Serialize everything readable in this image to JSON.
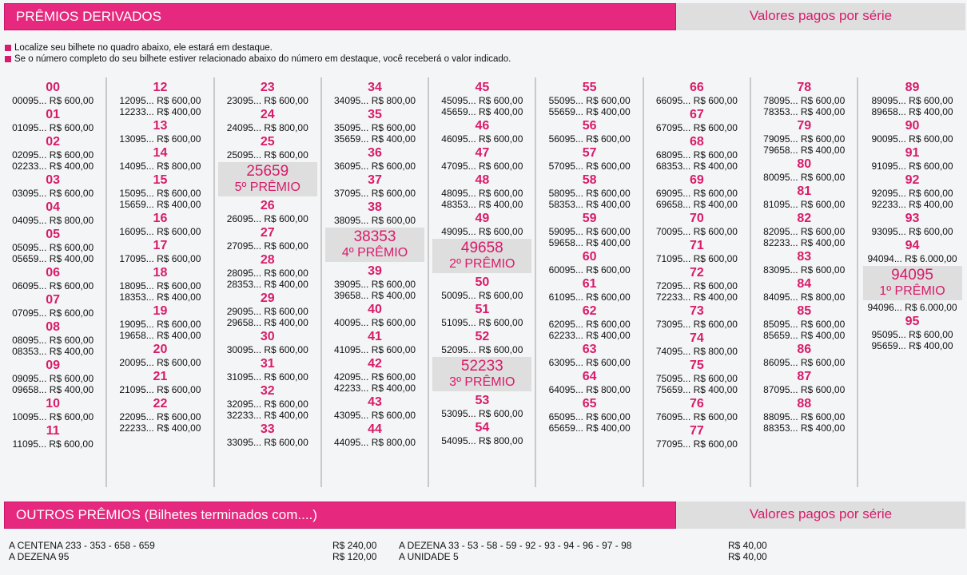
{
  "header": {
    "title": "PRÊMIOS DERIVADOS",
    "right_label": "Valores pagos por série"
  },
  "notes": [
    "Localize seu bilhete no quadro abaixo, ele estará em destaque.",
    "Se o número completo do seu bilhete estiver relacionado abaixo do número em destaque, você receberá o valor indicado."
  ],
  "columns": [
    [
      {
        "dz": "00",
        "lines": [
          "00095... R$ 600,00"
        ]
      },
      {
        "dz": "01",
        "lines": [
          "01095... R$ 600,00"
        ]
      },
      {
        "dz": "02",
        "lines": [
          "02095... R$ 600,00",
          "02233... R$ 400,00"
        ]
      },
      {
        "dz": "03",
        "lines": [
          "03095... R$ 600,00"
        ]
      },
      {
        "dz": "04",
        "lines": [
          "04095... R$ 800,00"
        ]
      },
      {
        "dz": "05",
        "lines": [
          "05095... R$ 600,00",
          "05659... R$ 400,00"
        ]
      },
      {
        "dz": "06",
        "lines": [
          "06095... R$ 600,00"
        ]
      },
      {
        "dz": "07",
        "lines": [
          "07095... R$ 600,00"
        ]
      },
      {
        "dz": "08",
        "lines": [
          "08095... R$ 600,00",
          "08353... R$ 400,00"
        ]
      },
      {
        "dz": "09",
        "lines": [
          "09095... R$ 600,00",
          "09658... R$ 400,00"
        ]
      },
      {
        "dz": "10",
        "lines": [
          "10095... R$ 600,00"
        ]
      },
      {
        "dz": "11",
        "lines": [
          "11095... R$ 600,00"
        ]
      }
    ],
    [
      {
        "dz": "12",
        "lines": [
          "12095... R$ 600,00",
          "12233... R$ 400,00"
        ]
      },
      {
        "dz": "13",
        "lines": [
          "13095... R$ 600,00"
        ]
      },
      {
        "dz": "14",
        "lines": [
          "14095... R$ 800,00"
        ]
      },
      {
        "dz": "15",
        "lines": [
          "15095... R$ 600,00",
          "15659... R$ 400,00"
        ]
      },
      {
        "dz": "16",
        "lines": [
          "16095... R$ 600,00"
        ]
      },
      {
        "dz": "17",
        "lines": [
          "17095... R$ 600,00"
        ]
      },
      {
        "dz": "18",
        "lines": [
          "18095... R$ 600,00",
          "18353... R$ 400,00"
        ]
      },
      {
        "dz": "19",
        "lines": [
          "19095... R$ 600,00",
          "19658... R$ 400,00"
        ]
      },
      {
        "dz": "20",
        "lines": [
          "20095... R$ 600,00"
        ]
      },
      {
        "dz": "21",
        "lines": [
          "21095... R$ 600,00"
        ]
      },
      {
        "dz": "22",
        "lines": [
          "22095... R$ 600,00",
          "22233... R$ 400,00"
        ]
      }
    ],
    [
      {
        "dz": "23",
        "lines": [
          "23095... R$ 600,00"
        ]
      },
      {
        "dz": "24",
        "lines": [
          "24095... R$ 800,00"
        ]
      },
      {
        "dz": "25",
        "lines": [
          "25095... R$ 600,00"
        ],
        "prize": {
          "num": "25659",
          "label": "5º PRÊMIO"
        }
      },
      {
        "dz": "26",
        "lines": [
          "26095... R$ 600,00"
        ]
      },
      {
        "dz": "27",
        "lines": [
          "27095... R$ 600,00"
        ]
      },
      {
        "dz": "28",
        "lines": [
          "28095... R$ 600,00",
          "28353... R$ 400,00"
        ]
      },
      {
        "dz": "29",
        "lines": [
          "29095... R$ 600,00",
          "29658... R$ 400,00"
        ]
      },
      {
        "dz": "30",
        "lines": [
          "30095... R$ 600,00"
        ]
      },
      {
        "dz": "31",
        "lines": [
          "31095... R$ 600,00"
        ]
      },
      {
        "dz": "32",
        "lines": [
          "32095... R$ 600,00",
          "32233... R$ 400,00"
        ]
      },
      {
        "dz": "33",
        "lines": [
          "33095... R$ 600,00"
        ]
      }
    ],
    [
      {
        "dz": "34",
        "lines": [
          "34095... R$ 800,00"
        ]
      },
      {
        "dz": "35",
        "lines": [
          "35095... R$ 600,00",
          "35659... R$ 400,00"
        ]
      },
      {
        "dz": "36",
        "lines": [
          "36095... R$ 600,00"
        ]
      },
      {
        "dz": "37",
        "lines": [
          "37095... R$ 600,00"
        ]
      },
      {
        "dz": "38",
        "lines": [
          "38095... R$ 600,00"
        ],
        "prize": {
          "num": "38353",
          "label": "4º PRÊMIO"
        }
      },
      {
        "dz": "39",
        "lines": [
          "39095... R$ 600,00",
          "39658... R$ 400,00"
        ]
      },
      {
        "dz": "40",
        "lines": [
          "40095... R$ 600,00"
        ]
      },
      {
        "dz": "41",
        "lines": [
          "41095... R$ 600,00"
        ]
      },
      {
        "dz": "42",
        "lines": [
          "42095... R$ 600,00",
          "42233... R$ 400,00"
        ]
      },
      {
        "dz": "43",
        "lines": [
          "43095... R$ 600,00"
        ]
      },
      {
        "dz": "44",
        "lines": [
          "44095... R$ 800,00"
        ]
      }
    ],
    [
      {
        "dz": "45",
        "lines": [
          "45095... R$ 600,00",
          "45659... R$ 400,00"
        ]
      },
      {
        "dz": "46",
        "lines": [
          "46095... R$ 600,00"
        ]
      },
      {
        "dz": "47",
        "lines": [
          "47095... R$ 600,00"
        ]
      },
      {
        "dz": "48",
        "lines": [
          "48095... R$ 600,00",
          "48353... R$ 400,00"
        ]
      },
      {
        "dz": "49",
        "lines": [
          "49095... R$ 600,00"
        ],
        "prize": {
          "num": "49658",
          "label": "2º PRÊMIO"
        }
      },
      {
        "dz": "50",
        "lines": [
          "50095... R$ 600,00"
        ]
      },
      {
        "dz": "51",
        "lines": [
          "51095... R$ 600,00"
        ]
      },
      {
        "dz": "52",
        "lines": [
          "52095... R$ 600,00"
        ],
        "prize": {
          "num": "52233",
          "label": "3º PRÊMIO"
        }
      },
      {
        "dz": "53",
        "lines": [
          "53095... R$ 600,00"
        ]
      },
      {
        "dz": "54",
        "lines": [
          "54095... R$ 800,00"
        ]
      }
    ],
    [
      {
        "dz": "55",
        "lines": [
          "55095... R$ 600,00",
          "55659... R$ 400,00"
        ]
      },
      {
        "dz": "56",
        "lines": [
          "56095... R$ 600,00"
        ]
      },
      {
        "dz": "57",
        "lines": [
          "57095... R$ 600,00"
        ]
      },
      {
        "dz": "58",
        "lines": [
          "58095... R$ 600,00",
          "58353... R$ 400,00"
        ]
      },
      {
        "dz": "59",
        "lines": [
          "59095... R$ 600,00",
          "59658... R$ 400,00"
        ]
      },
      {
        "dz": "60",
        "lines": [
          "60095... R$ 600,00"
        ]
      },
      {
        "dz": "61",
        "lines": [
          "61095... R$ 600,00"
        ]
      },
      {
        "dz": "62",
        "lines": [
          "62095... R$ 600,00",
          "62233... R$ 400,00"
        ]
      },
      {
        "dz": "63",
        "lines": [
          "63095... R$ 600,00"
        ]
      },
      {
        "dz": "64",
        "lines": [
          "64095... R$ 800,00"
        ]
      },
      {
        "dz": "65",
        "lines": [
          "65095... R$ 600,00",
          "65659... R$ 400,00"
        ]
      }
    ],
    [
      {
        "dz": "66",
        "lines": [
          "66095... R$ 600,00"
        ]
      },
      {
        "dz": "67",
        "lines": [
          "67095... R$ 600,00"
        ]
      },
      {
        "dz": "68",
        "lines": [
          "68095... R$ 600,00",
          "68353... R$ 400,00"
        ]
      },
      {
        "dz": "69",
        "lines": [
          "69095... R$ 600,00",
          "69658... R$ 400,00"
        ]
      },
      {
        "dz": "70",
        "lines": [
          "70095... R$ 600,00"
        ]
      },
      {
        "dz": "71",
        "lines": [
          "71095... R$ 600,00"
        ]
      },
      {
        "dz": "72",
        "lines": [
          "72095... R$ 600,00",
          "72233... R$ 400,00"
        ]
      },
      {
        "dz": "73",
        "lines": [
          "73095... R$ 600,00"
        ]
      },
      {
        "dz": "74",
        "lines": [
          "74095... R$ 800,00"
        ]
      },
      {
        "dz": "75",
        "lines": [
          "75095... R$ 600,00",
          "75659... R$ 400,00"
        ]
      },
      {
        "dz": "76",
        "lines": [
          "76095... R$ 600,00"
        ]
      },
      {
        "dz": "77",
        "lines": [
          "77095... R$ 600,00"
        ]
      }
    ],
    [
      {
        "dz": "78",
        "lines": [
          "78095... R$ 600,00",
          "78353... R$ 400,00"
        ]
      },
      {
        "dz": "79",
        "lines": [
          "79095... R$ 600,00",
          "79658... R$ 400,00"
        ]
      },
      {
        "dz": "80",
        "lines": [
          "80095... R$ 600,00"
        ]
      },
      {
        "dz": "81",
        "lines": [
          "81095... R$ 600,00"
        ]
      },
      {
        "dz": "82",
        "lines": [
          "82095... R$ 600,00",
          "82233... R$ 400,00"
        ]
      },
      {
        "dz": "83",
        "lines": [
          "83095... R$ 600,00"
        ]
      },
      {
        "dz": "84",
        "lines": [
          "84095... R$ 800,00"
        ]
      },
      {
        "dz": "85",
        "lines": [
          "85095... R$ 600,00",
          "85659... R$ 400,00"
        ]
      },
      {
        "dz": "86",
        "lines": [
          "86095... R$ 600,00"
        ]
      },
      {
        "dz": "87",
        "lines": [
          "87095... R$ 600,00"
        ]
      },
      {
        "dz": "88",
        "lines": [
          "88095... R$ 600,00",
          "88353... R$ 400,00"
        ]
      }
    ],
    [
      {
        "dz": "89",
        "lines": [
          "89095... R$ 600,00",
          "89658... R$ 400,00"
        ]
      },
      {
        "dz": "90",
        "lines": [
          "90095... R$ 600,00"
        ]
      },
      {
        "dz": "91",
        "lines": [
          "91095... R$ 600,00"
        ]
      },
      {
        "dz": "92",
        "lines": [
          "92095... R$ 600,00",
          "92233... R$ 400,00"
        ]
      },
      {
        "dz": "93",
        "lines": [
          "93095... R$ 600,00"
        ]
      },
      {
        "dz": "94",
        "lines": [
          "94094... R$ 6.000,00"
        ],
        "prize": {
          "num": "94095",
          "label": "1º PRÊMIO"
        },
        "after": [
          "94096... R$ 6.000,00"
        ]
      },
      {
        "dz": "95",
        "lines": [
          "95095... R$ 600,00",
          "95659... R$ 400,00"
        ]
      }
    ]
  ],
  "others_header": {
    "title": "OUTROS PRÊMIOS (Bilhetes terminados com....)",
    "right_label": "Valores pagos por série"
  },
  "others": {
    "left": [
      {
        "label": "A CENTENA 233 - 353 - 658 - 659",
        "value": "R$ 240,00"
      },
      {
        "label": "A DEZENA 95",
        "value": "R$ 120,00"
      }
    ],
    "right": [
      {
        "label": "A DEZENA 33 - 53 - 58 - 59 - 92 - 93 - 94 - 96 - 97 - 98",
        "value": "R$ 40,00"
      },
      {
        "label": "A UNIDADE 5",
        "value": "R$ 40,00"
      }
    ]
  },
  "colors": {
    "accent": "#e6287f",
    "accent_text": "#d81b6a",
    "highlight_bg": "#dedede",
    "background": "#f4f5f6"
  }
}
